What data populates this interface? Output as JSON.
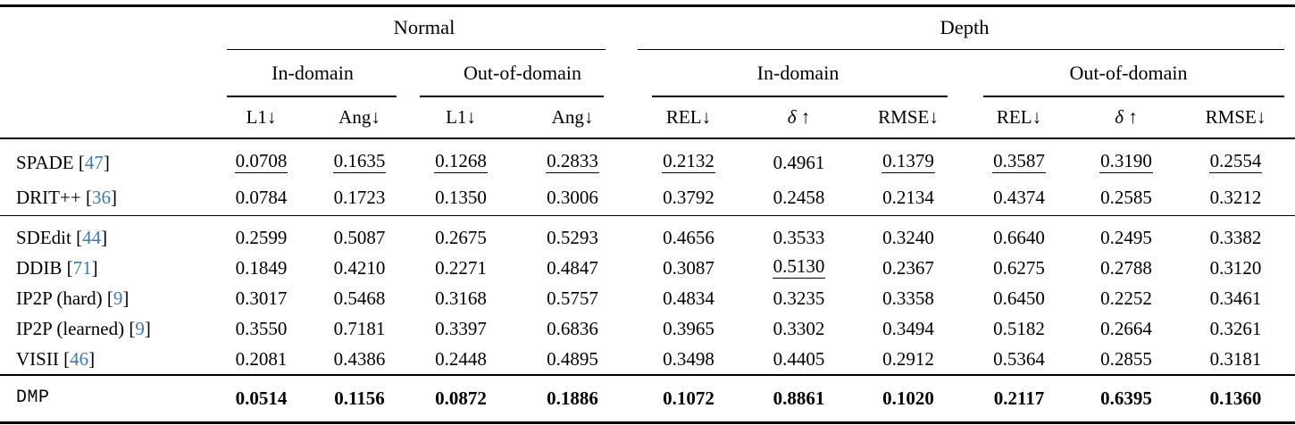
{
  "colors": {
    "citation": "#3f77af",
    "text": "#000000",
    "rule": "#000000"
  },
  "table": {
    "groups": [
      {
        "label": "Normal"
      },
      {
        "label": "Depth"
      }
    ],
    "subgroups": [
      "In-domain",
      "Out-of-domain",
      "In-domain",
      "Out-of-domain"
    ],
    "metrics": [
      "L1↓",
      "Ang↓",
      "L1↓",
      "Ang↓",
      "REL↓",
      "δ ↑",
      "RMSE↓",
      "REL↓",
      "δ ↑",
      "RMSE↓"
    ],
    "sections": [
      {
        "rows": [
          {
            "label": "SPADE",
            "ref": "47",
            "mono": false,
            "bold": false,
            "values": [
              "0.0708",
              "0.1635",
              "0.1268",
              "0.2833",
              "0.2132",
              "0.4961",
              "0.1379",
              "0.3587",
              "0.3190",
              "0.2554"
            ],
            "underline": [
              true,
              true,
              true,
              true,
              true,
              false,
              true,
              true,
              true,
              true
            ]
          },
          {
            "label": "DRIT++",
            "ref": "36",
            "mono": false,
            "bold": false,
            "values": [
              "0.0784",
              "0.1723",
              "0.1350",
              "0.3006",
              "0.3792",
              "0.2458",
              "0.2134",
              "0.4374",
              "0.2585",
              "0.3212"
            ],
            "underline": [
              false,
              false,
              false,
              false,
              false,
              false,
              false,
              false,
              false,
              false
            ]
          }
        ]
      },
      {
        "rows": [
          {
            "label": "SDEdit",
            "ref": "44",
            "mono": false,
            "bold": false,
            "values": [
              "0.2599",
              "0.5087",
              "0.2675",
              "0.5293",
              "0.4656",
              "0.3533",
              "0.3240",
              "0.6640",
              "0.2495",
              "0.3382"
            ],
            "underline": [
              false,
              false,
              false,
              false,
              false,
              false,
              false,
              false,
              false,
              false
            ]
          },
          {
            "label": "DDIB",
            "ref": "71",
            "mono": false,
            "bold": false,
            "values": [
              "0.1849",
              "0.4210",
              "0.2271",
              "0.4847",
              "0.3087",
              "0.5130",
              "0.2367",
              "0.6275",
              "0.2788",
              "0.3120"
            ],
            "underline": [
              false,
              false,
              false,
              false,
              false,
              true,
              false,
              false,
              false,
              false
            ]
          },
          {
            "label": "IP2P (hard)",
            "ref": "9",
            "mono": false,
            "bold": false,
            "values": [
              "0.3017",
              "0.5468",
              "0.3168",
              "0.5757",
              "0.4834",
              "0.3235",
              "0.3358",
              "0.6450",
              "0.2252",
              "0.3461"
            ],
            "underline": [
              false,
              false,
              false,
              false,
              false,
              false,
              false,
              false,
              false,
              false
            ]
          },
          {
            "label": "IP2P (learned)",
            "ref": "9",
            "mono": false,
            "bold": false,
            "values": [
              "0.3550",
              "0.7181",
              "0.3397",
              "0.6836",
              "0.3965",
              "0.3302",
              "0.3494",
              "0.5182",
              "0.2664",
              "0.3261"
            ],
            "underline": [
              false,
              false,
              false,
              false,
              false,
              false,
              false,
              false,
              false,
              false
            ]
          },
          {
            "label": "VISII",
            "ref": "46",
            "mono": false,
            "bold": false,
            "values": [
              "0.2081",
              "0.4386",
              "0.2448",
              "0.4895",
              "0.3498",
              "0.4405",
              "0.2912",
              "0.5364",
              "0.2855",
              "0.3181"
            ],
            "underline": [
              false,
              false,
              false,
              false,
              false,
              false,
              false,
              false,
              false,
              false
            ]
          }
        ]
      },
      {
        "rows": [
          {
            "label": "DMP",
            "ref": null,
            "mono": true,
            "bold": true,
            "values": [
              "0.0514",
              "0.1156",
              "0.0872",
              "0.1886",
              "0.1072",
              "0.8861",
              "0.1020",
              "0.2117",
              "0.6395",
              "0.1360"
            ],
            "underline": [
              false,
              false,
              false,
              false,
              false,
              false,
              false,
              false,
              false,
              false
            ]
          }
        ]
      }
    ]
  }
}
